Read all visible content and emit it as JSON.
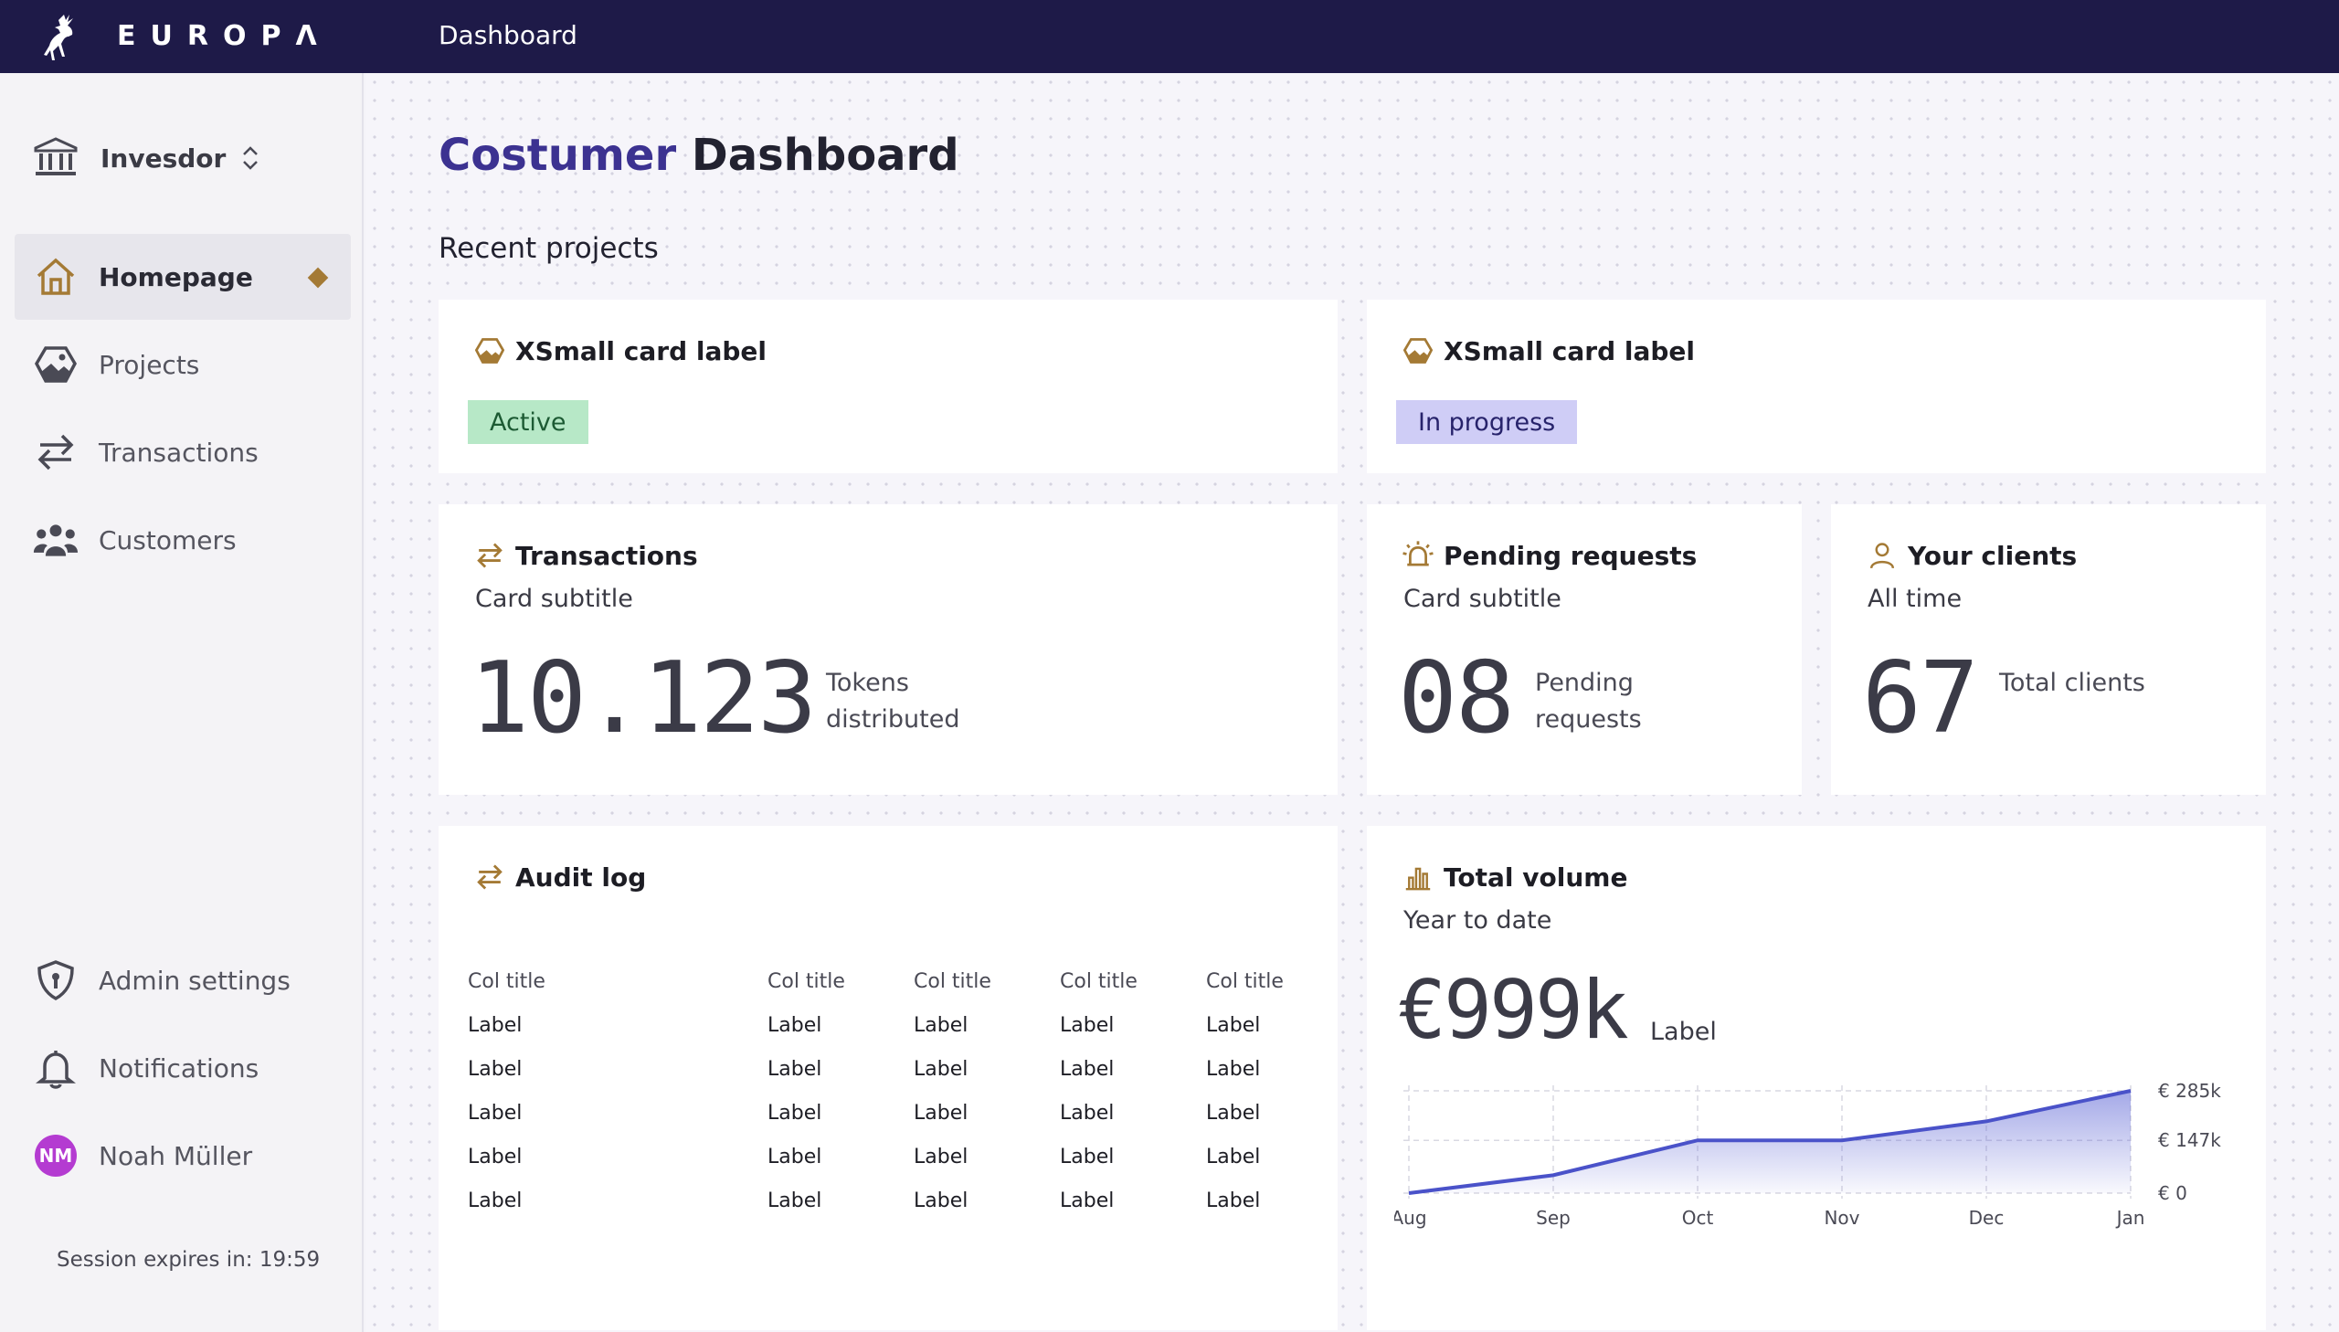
{
  "topbar": {
    "brand": "EUROPΛ",
    "title": "Dashboard"
  },
  "sidebar": {
    "org": {
      "label": "Invesdor",
      "icon": "bank-icon"
    },
    "items": [
      {
        "label": "Homepage",
        "icon": "home-icon",
        "active": true
      },
      {
        "label": "Projects",
        "icon": "image-icon"
      },
      {
        "label": "Transactions",
        "icon": "arrows-swap-icon"
      },
      {
        "label": "Customers",
        "icon": "users-icon"
      }
    ],
    "bottom": [
      {
        "label": "Admin settings",
        "icon": "shield-icon"
      },
      {
        "label": "Notifications",
        "icon": "bell-icon"
      },
      {
        "label": "Noah Müller",
        "avatar": "NM"
      }
    ],
    "session": "Session expires in: 19:59"
  },
  "main": {
    "title_accent": "Costumer",
    "title_rest": " Dashboard",
    "section": "Recent projects",
    "project_cards": [
      {
        "title": "XSmall card label",
        "tag": "Active"
      },
      {
        "title": "XSmall card label",
        "tag": "In progress"
      }
    ],
    "transactions": {
      "title": "Transactions",
      "subtitle": "Card subtitle",
      "value": "10.123",
      "caption": "Tokens distributed"
    },
    "pending": {
      "title": "Pending requests",
      "subtitle": "Card subtitle",
      "value": "08",
      "caption": "Pending requests"
    },
    "clients": {
      "title": "Your clients",
      "subtitle": "All time",
      "value": "67",
      "caption": "Total clients"
    },
    "audit": {
      "title": "Audit log",
      "columns": [
        "Col title",
        "Col title",
        "Col title",
        "Col title",
        "Col title"
      ],
      "rows": [
        [
          "Label",
          "Label",
          "Label",
          "Label",
          "Label"
        ],
        [
          "Label",
          "Label",
          "Label",
          "Label",
          "Label"
        ],
        [
          "Label",
          "Label",
          "Label",
          "Label",
          "Label"
        ],
        [
          "Label",
          "Label",
          "Label",
          "Label",
          "Label"
        ],
        [
          "Label",
          "Label",
          "Label",
          "Label",
          "Label"
        ]
      ]
    },
    "volume": {
      "title": "Total volume",
      "subtitle": "Year to date",
      "value": "€999k",
      "label": "Label"
    }
  },
  "colors": {
    "topbar": "#1e1a48",
    "accent_gold": "#a47a35",
    "chart_line": "#4a52c9",
    "title_accent": "#3c3291"
  },
  "chart_data": {
    "type": "area",
    "categories": [
      "Aug",
      "Sep",
      "Oct",
      "Nov",
      "Dec",
      "Jan"
    ],
    "series": [
      {
        "values": [
          0,
          50,
          147,
          147,
          200,
          285
        ]
      }
    ],
    "y_ticks": [
      "€ 285k",
      "€ 147k",
      "€ 0"
    ],
    "ylim": [
      0,
      285
    ],
    "grid": true,
    "y_axis": "right"
  }
}
